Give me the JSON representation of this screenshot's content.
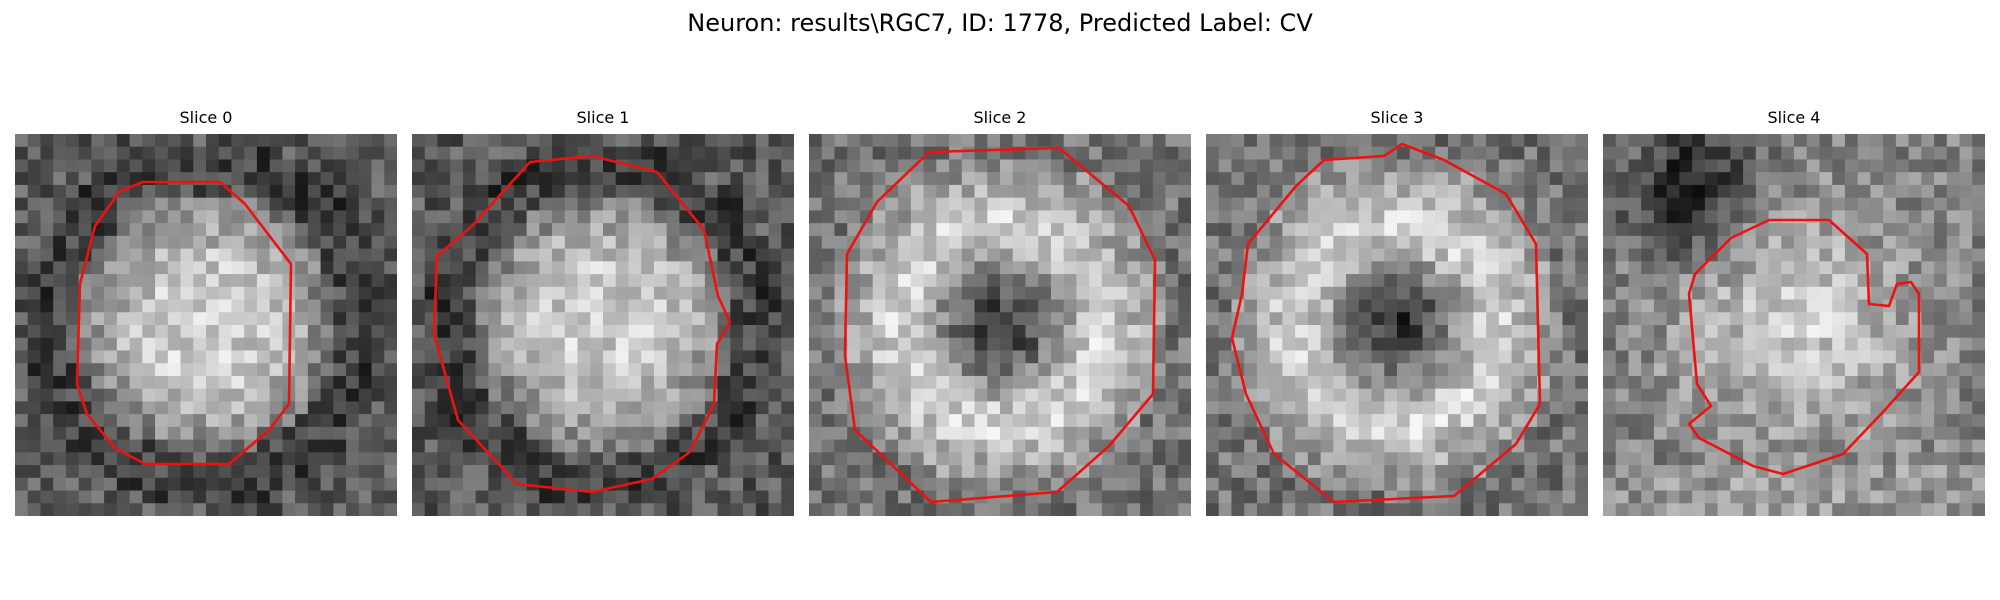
{
  "figure": {
    "title": "Neuron: results\\RGC7, ID: 1778, Predicted Label: CV"
  },
  "colors": {
    "contour": "#ee1111",
    "colormap": "gray"
  },
  "slices": [
    {
      "label": "Slice 0",
      "pattern": "bright-disk"
    },
    {
      "label": "Slice 1",
      "pattern": "bright-disk"
    },
    {
      "label": "Slice 2",
      "pattern": "ring-dark-center"
    },
    {
      "label": "Slice 3",
      "pattern": "ring-dark-center"
    },
    {
      "label": "Slice 4",
      "pattern": "bright-disk-dark-corner"
    }
  ]
}
